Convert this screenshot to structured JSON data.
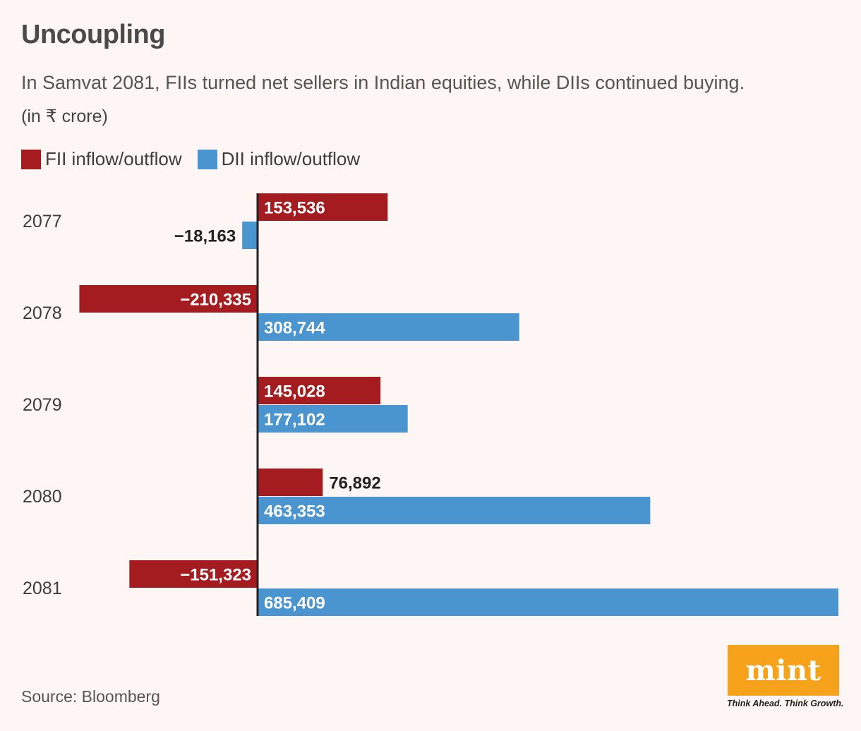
{
  "header": {
    "title": "Uncoupling",
    "subtitle": "In Samvat 2081, FIIs turned net sellers in Indian equities, while DIIs continued buying.",
    "unit": "(in ₹ crore)"
  },
  "legend": {
    "items": [
      {
        "label": "FII inflow/outflow",
        "color": "#a51c20"
      },
      {
        "label": "DII inflow/outflow",
        "color": "#4a94d0"
      }
    ]
  },
  "chart_data": {
    "type": "bar",
    "orientation": "horizontal",
    "categories": [
      "2077",
      "2078",
      "2079",
      "2080",
      "2081"
    ],
    "series": [
      {
        "name": "FII inflow/outflow",
        "color": "#a51c20",
        "values": [
          153536,
          -210335,
          145028,
          76892,
          -151323
        ],
        "labels": [
          "153,536",
          "−210,335",
          "145,028",
          "76,892",
          "−151,323"
        ]
      },
      {
        "name": "DII inflow/outflow",
        "color": "#4a94d0",
        "values": [
          -18163,
          308744,
          177102,
          463353,
          685409
        ],
        "labels": [
          "−18,163",
          "308,744",
          "177,102",
          "463,353",
          "685,409"
        ]
      }
    ],
    "xlim": [
      -210335,
      685409
    ],
    "grid": false,
    "legend_position": "top-left"
  },
  "footer": {
    "source": "Source: Bloomberg",
    "logo_text": "mint",
    "tagline": "Think Ahead. Think Growth."
  }
}
